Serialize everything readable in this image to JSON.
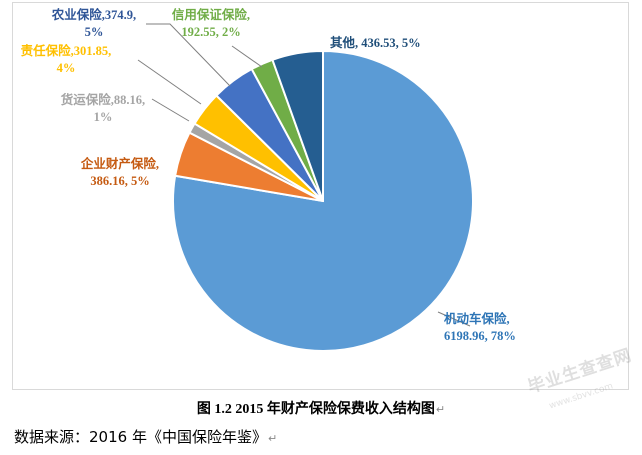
{
  "chart_data": {
    "type": "pie",
    "slices": [
      {
        "name": "机动车保险",
        "value": 6198.96,
        "percent": "78%",
        "color": "#5b9bd5"
      },
      {
        "name": "企业财产保险",
        "value": 386.16,
        "percent": "5%",
        "color": "#ed7d31"
      },
      {
        "name": "货运保险",
        "value": 88.16,
        "percent": "1%",
        "color": "#a5a5a5"
      },
      {
        "name": "责任保险",
        "value": 301.85,
        "percent": "4%",
        "color": "#ffc000"
      },
      {
        "name": "农业保险",
        "value": 374.9,
        "percent": "5%",
        "color": "#4472c4"
      },
      {
        "name": "信用保证保险",
        "value": 192.55,
        "percent": "2%",
        "color": "#70ad47"
      },
      {
        "name": "其他",
        "value": 436.53,
        "percent": "5%",
        "color": "#255e91"
      }
    ],
    "labels": [
      {
        "slice": 0,
        "line1": "机动车保险,",
        "line2": "6198.96, 78%",
        "color": "#2e75b6"
      },
      {
        "slice": 1,
        "line1": "企业财产保险,",
        "line2": "386.16, 5%",
        "color": "#c55a11"
      },
      {
        "slice": 2,
        "line1": "货运保险,88.16,",
        "line2": "1%",
        "color": "#a5a5a5"
      },
      {
        "slice": 3,
        "line1": "责任保险,301.85,",
        "line2": "4%",
        "color": "#ffc000"
      },
      {
        "slice": 4,
        "line1": "农业保险,374.9,",
        "line2": "5%",
        "color": "#2f5597"
      },
      {
        "slice": 5,
        "line1": "信用保证保险,",
        "line2": "192.55, 2%",
        "color": "#70ad47"
      },
      {
        "slice": 6,
        "line1": "其他, 436.53, 5%",
        "line2": "",
        "color": "#1f4e79"
      }
    ]
  },
  "caption": "图 1.2 2015 年财产保险保费收入结构图",
  "source_text": "数据来源：2016 年《中国保险年鉴》",
  "return_mark": "↵",
  "watermark": "毕业生查查网",
  "watermark_sub": "www.sbvv.com"
}
